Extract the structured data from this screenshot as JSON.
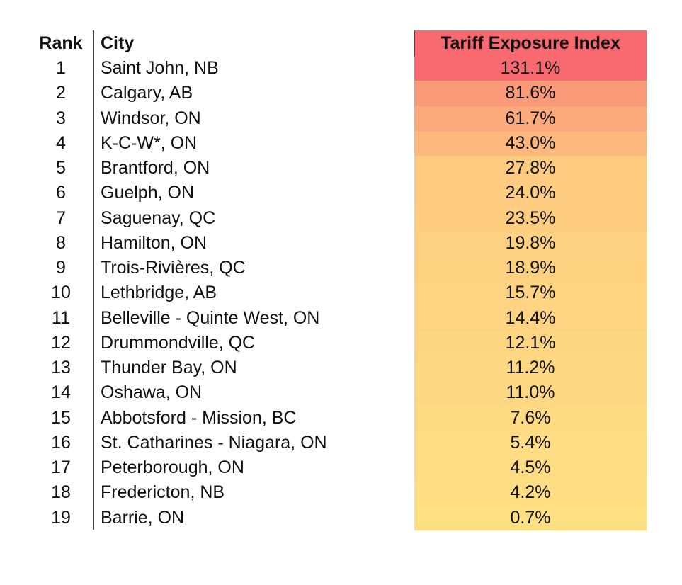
{
  "table": {
    "headers": {
      "rank": "Rank",
      "city": "City",
      "index": "Tariff Exposure Index"
    }
  },
  "chart_data": {
    "type": "table",
    "columns": [
      "Rank",
      "City",
      "Tariff Exposure Index"
    ],
    "rows": [
      {
        "rank": "1",
        "city": "Saint John, NB",
        "value": "131.1%",
        "color": "#f96a70"
      },
      {
        "rank": "2",
        "city": "Calgary, AB",
        "value": "81.6%",
        "color": "#fb9a78"
      },
      {
        "rank": "3",
        "city": "Windsor, ON",
        "value": "61.7%",
        "color": "#fcaa7b"
      },
      {
        "rank": "4",
        "city": "K-C-W*, ON",
        "value": "43.0%",
        "color": "#fdb97d"
      },
      {
        "rank": "5",
        "city": "Brantford, ON",
        "value": "27.8%",
        "color": "#fecb80"
      },
      {
        "rank": "6",
        "city": "Guelph, ON",
        "value": "24.0%",
        "color": "#fecc80"
      },
      {
        "rank": "7",
        "city": "Saguenay, QC",
        "value": "23.5%",
        "color": "#fecd80"
      },
      {
        "rank": "8",
        "city": "Hamilton, ON",
        "value": "19.8%",
        "color": "#fed081"
      },
      {
        "rank": "9",
        "city": "Trois-Rivières, QC",
        "value": "18.9%",
        "color": "#fed181"
      },
      {
        "rank": "10",
        "city": "Lethbridge, AB",
        "value": "15.7%",
        "color": "#fed381"
      },
      {
        "rank": "11",
        "city": "Belleville - Quinte West, ON",
        "value": "14.4%",
        "color": "#fed482"
      },
      {
        "rank": "12",
        "city": "Drummondville, QC",
        "value": "12.1%",
        "color": "#fed682"
      },
      {
        "rank": "13",
        "city": "Thunder Bay, ON",
        "value": "11.2%",
        "color": "#fed782"
      },
      {
        "rank": "14",
        "city": "Oshawa, ON",
        "value": "11.0%",
        "color": "#fed782"
      },
      {
        "rank": "15",
        "city": "Abbotsford - Mission, BC",
        "value": "7.6%",
        "color": "#feda83"
      },
      {
        "rank": "16",
        "city": "St. Catharines - Niagara, ON",
        "value": "5.4%",
        "color": "#fedc83"
      },
      {
        "rank": "17",
        "city": "Peterborough, ON",
        "value": "4.5%",
        "color": "#fedc83"
      },
      {
        "rank": "18",
        "city": "Fredericton, NB",
        "value": "4.2%",
        "color": "#fedd83"
      },
      {
        "rank": "19",
        "city": "Barrie, ON",
        "value": "0.7%",
        "color": "#fee083"
      }
    ]
  }
}
